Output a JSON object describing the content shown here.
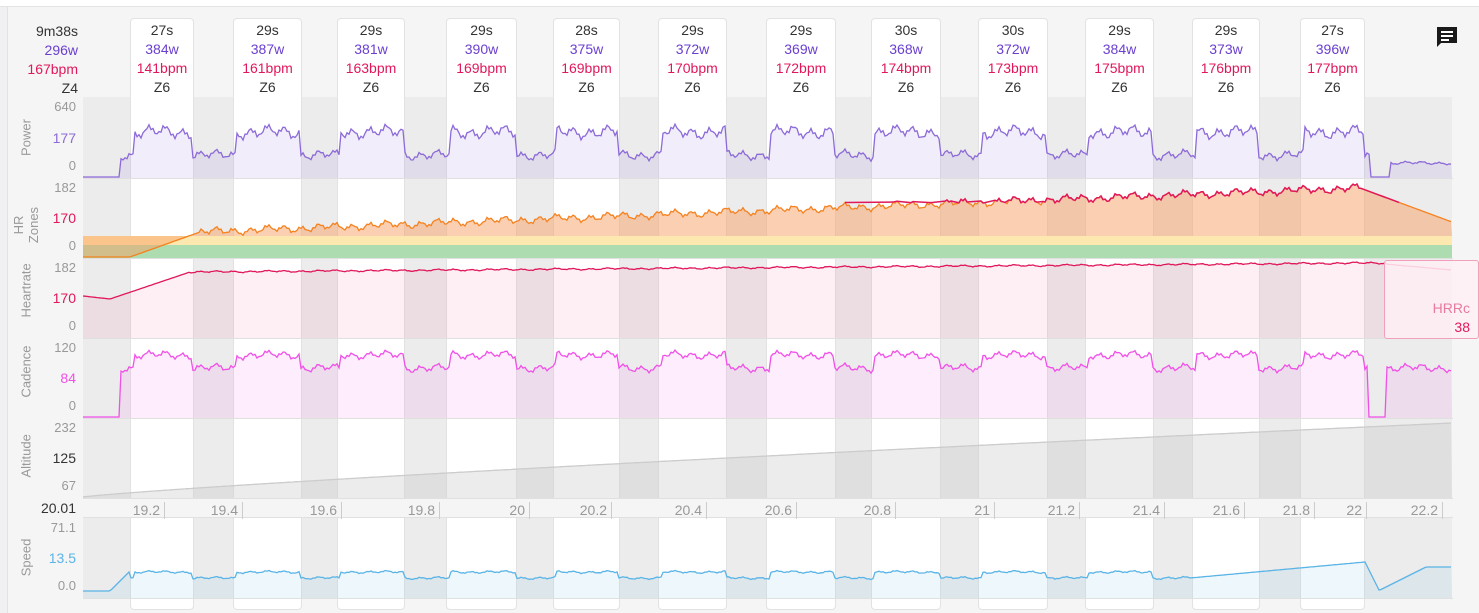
{
  "summary": {
    "duration": "9m38s",
    "power": "296w",
    "hr": "167bpm",
    "zone": "Z4"
  },
  "intervals": [
    {
      "dur": "27s",
      "w": "384w",
      "bpm": "141bpm",
      "z": "Z6"
    },
    {
      "dur": "29s",
      "w": "387w",
      "bpm": "161bpm",
      "z": "Z6"
    },
    {
      "dur": "29s",
      "w": "381w",
      "bpm": "163bpm",
      "z": "Z6"
    },
    {
      "dur": "29s",
      "w": "390w",
      "bpm": "169bpm",
      "z": "Z6"
    },
    {
      "dur": "28s",
      "w": "375w",
      "bpm": "169bpm",
      "z": "Z6"
    },
    {
      "dur": "29s",
      "w": "372w",
      "bpm": "170bpm",
      "z": "Z6"
    },
    {
      "dur": "29s",
      "w": "369w",
      "bpm": "172bpm",
      "z": "Z6"
    },
    {
      "dur": "30s",
      "w": "368w",
      "bpm": "174bpm",
      "z": "Z6"
    },
    {
      "dur": "30s",
      "w": "372w",
      "bpm": "173bpm",
      "z": "Z6"
    },
    {
      "dur": "29s",
      "w": "384w",
      "bpm": "175bpm",
      "z": "Z6"
    },
    {
      "dur": "29s",
      "w": "373w",
      "bpm": "176bpm",
      "z": "Z6"
    },
    {
      "dur": "27s",
      "w": "396w",
      "bpm": "177bpm",
      "z": "Z6"
    }
  ],
  "panels": {
    "power": {
      "label": "Power",
      "max": "640",
      "cur": "177",
      "min": "0",
      "color": "#8c6ad8"
    },
    "hrzones": {
      "label": "HR Zones",
      "max": "182",
      "cur": "170",
      "min": "0"
    },
    "heartrate": {
      "label": "Heartrate",
      "max": "182",
      "cur": "170",
      "min": "0",
      "color": "#e0185a"
    },
    "cadence": {
      "label": "Cadence",
      "max": "120",
      "cur": "84",
      "min": "0",
      "color": "#f050e8"
    },
    "altitude": {
      "label": "Altitude",
      "max": "232",
      "cur": "125",
      "min": "67"
    },
    "speed": {
      "label": "Speed",
      "max": "71.1",
      "cur": "13.5",
      "min": "0.0",
      "color": "#5ab4e6"
    }
  },
  "xaxis": {
    "start": "20.01",
    "ticks": [
      "19.2",
      "19.4",
      "19.6",
      "19.8",
      "20",
      "20.2",
      "20.4",
      "20.6",
      "20.8",
      "21",
      "21.2",
      "21.4",
      "21.6",
      "21.8",
      "22",
      "22.2"
    ]
  },
  "hrrc": {
    "label": "HRRc",
    "value": "38"
  }
}
